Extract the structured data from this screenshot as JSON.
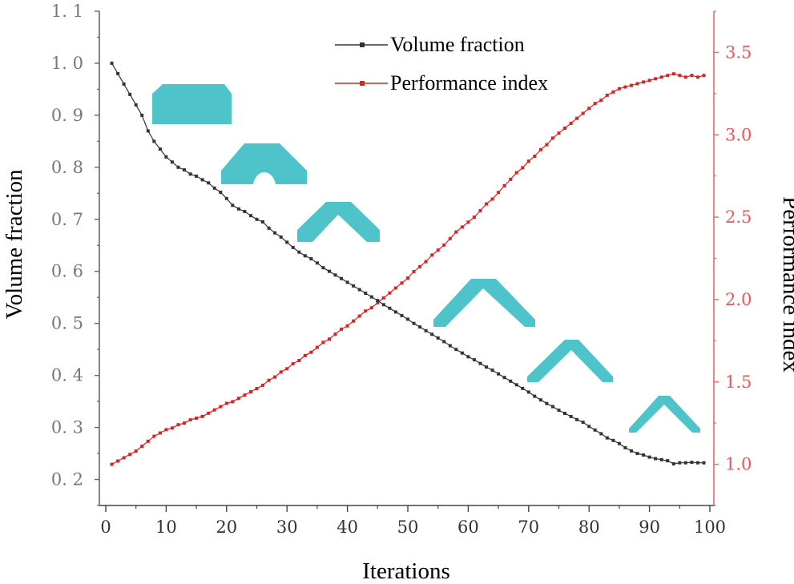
{
  "chart_data": {
    "type": "line",
    "xlabel": "Iterations",
    "ylabel_left": "Volume fraction",
    "ylabel_right": "Performance index",
    "xlim": [
      0,
      100
    ],
    "ylim_left": [
      0.15,
      1.1
    ],
    "ylim_right": [
      0.75,
      3.75
    ],
    "x_ticks": [
      "0",
      "10",
      "20",
      "30",
      "40",
      "50",
      "60",
      "70",
      "80",
      "90",
      "100"
    ],
    "y_left_ticks": [
      "0.2",
      "0.3",
      "0.4",
      "0.5",
      "0.6",
      "0.7",
      "0.8",
      "0.9",
      "1.0",
      "1.1"
    ],
    "y_right_ticks": [
      "1.0",
      "1.5",
      "2.0",
      "2.5",
      "3.0",
      "3.5"
    ],
    "legend": [
      "Volume fraction",
      "Performance index"
    ],
    "grid": false,
    "legend_position": "top-center",
    "colors": {
      "volume": "#333333",
      "performance": "#e02020",
      "right_axis": "#ee5555",
      "shape": "#4ec3c9"
    },
    "series": [
      {
        "name": "Volume fraction",
        "axis": "left",
        "x": [
          1,
          2,
          3,
          4,
          5,
          6,
          7,
          8,
          9,
          10,
          11,
          12,
          13,
          14,
          15,
          16,
          17,
          18,
          19,
          20,
          21,
          22,
          23,
          24,
          25,
          26,
          27,
          28,
          29,
          30,
          31,
          32,
          33,
          34,
          35,
          36,
          37,
          38,
          39,
          40,
          41,
          42,
          43,
          44,
          45,
          46,
          47,
          48,
          49,
          50,
          51,
          52,
          53,
          54,
          55,
          56,
          57,
          58,
          59,
          60,
          61,
          62,
          63,
          64,
          65,
          66,
          67,
          68,
          69,
          70,
          71,
          72,
          73,
          74,
          75,
          76,
          77,
          78,
          79,
          80,
          81,
          82,
          83,
          84,
          85,
          86,
          87,
          88,
          89,
          90,
          91,
          92,
          93,
          94,
          95,
          96,
          97,
          98,
          99
        ],
        "values": [
          1.0,
          0.98,
          0.96,
          0.94,
          0.92,
          0.9,
          0.87,
          0.85,
          0.835,
          0.82,
          0.81,
          0.8,
          0.795,
          0.787,
          0.783,
          0.776,
          0.77,
          0.76,
          0.752,
          0.74,
          0.727,
          0.72,
          0.715,
          0.707,
          0.7,
          0.695,
          0.683,
          0.674,
          0.666,
          0.656,
          0.646,
          0.637,
          0.63,
          0.624,
          0.616,
          0.607,
          0.6,
          0.593,
          0.586,
          0.579,
          0.572,
          0.565,
          0.558,
          0.551,
          0.544,
          0.536,
          0.529,
          0.522,
          0.515,
          0.508,
          0.5,
          0.493,
          0.486,
          0.479,
          0.472,
          0.465,
          0.457,
          0.45,
          0.443,
          0.436,
          0.43,
          0.423,
          0.416,
          0.41,
          0.403,
          0.396,
          0.389,
          0.382,
          0.375,
          0.368,
          0.36,
          0.353,
          0.346,
          0.34,
          0.333,
          0.327,
          0.321,
          0.315,
          0.31,
          0.302,
          0.295,
          0.288,
          0.28,
          0.275,
          0.269,
          0.261,
          0.255,
          0.25,
          0.247,
          0.243,
          0.24,
          0.238,
          0.236,
          0.23,
          0.232,
          0.232,
          0.233,
          0.232,
          0.232
        ]
      },
      {
        "name": "Performance index",
        "axis": "right",
        "x": [
          1,
          2,
          3,
          4,
          5,
          6,
          7,
          8,
          9,
          10,
          11,
          12,
          13,
          14,
          15,
          16,
          17,
          18,
          19,
          20,
          21,
          22,
          23,
          24,
          25,
          26,
          27,
          28,
          29,
          30,
          31,
          32,
          33,
          34,
          35,
          36,
          37,
          38,
          39,
          40,
          41,
          42,
          43,
          44,
          45,
          46,
          47,
          48,
          49,
          50,
          51,
          52,
          53,
          54,
          55,
          56,
          57,
          58,
          59,
          60,
          61,
          62,
          63,
          64,
          65,
          66,
          67,
          68,
          69,
          70,
          71,
          72,
          73,
          74,
          75,
          76,
          77,
          78,
          79,
          80,
          81,
          82,
          83,
          84,
          85,
          86,
          87,
          88,
          89,
          90,
          91,
          92,
          93,
          94,
          95,
          96,
          97,
          98,
          99
        ],
        "values": [
          1.0,
          1.02,
          1.04,
          1.06,
          1.08,
          1.11,
          1.14,
          1.17,
          1.19,
          1.21,
          1.22,
          1.24,
          1.25,
          1.27,
          1.28,
          1.29,
          1.31,
          1.33,
          1.35,
          1.37,
          1.38,
          1.4,
          1.42,
          1.44,
          1.46,
          1.48,
          1.51,
          1.53,
          1.56,
          1.58,
          1.61,
          1.63,
          1.66,
          1.68,
          1.71,
          1.74,
          1.76,
          1.79,
          1.82,
          1.84,
          1.87,
          1.9,
          1.93,
          1.95,
          1.98,
          2.01,
          2.04,
          2.07,
          2.1,
          2.13,
          2.17,
          2.2,
          2.23,
          2.27,
          2.3,
          2.33,
          2.37,
          2.41,
          2.44,
          2.47,
          2.5,
          2.54,
          2.58,
          2.61,
          2.65,
          2.69,
          2.73,
          2.77,
          2.8,
          2.84,
          2.87,
          2.91,
          2.94,
          2.98,
          3.01,
          3.04,
          3.07,
          3.1,
          3.13,
          3.16,
          3.19,
          3.21,
          3.24,
          3.26,
          3.28,
          3.29,
          3.3,
          3.31,
          3.32,
          3.33,
          3.34,
          3.35,
          3.36,
          3.37,
          3.36,
          3.35,
          3.36,
          3.35,
          3.36
        ]
      }
    ]
  }
}
